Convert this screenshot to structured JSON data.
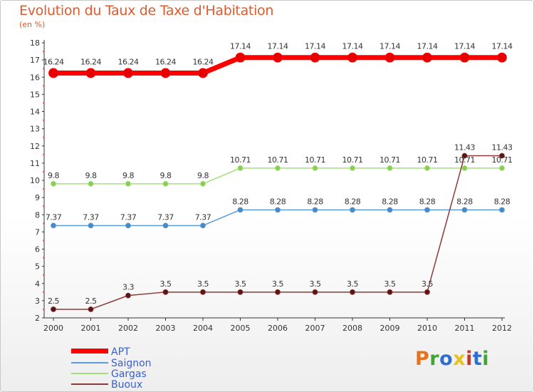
{
  "title": "Evolution du Taux de Taxe d'Habitation",
  "unit_label": "(en %)",
  "logo_text": "Proxiti",
  "logo_colors": [
    "#e8711c",
    "#3fa535",
    "#2f6fd1",
    "#e8c21c",
    "#c0392b",
    "#2f6fd1",
    "#3fa535"
  ],
  "chart_data": {
    "type": "line",
    "x": [
      2000,
      2001,
      2002,
      2003,
      2004,
      2005,
      2006,
      2007,
      2008,
      2009,
      2010,
      2011,
      2012
    ],
    "ylim": [
      2,
      18
    ],
    "yticks": [
      2,
      3,
      4,
      5,
      6,
      7,
      8,
      9,
      10,
      11,
      12,
      13,
      14,
      15,
      16,
      17,
      18
    ],
    "grid": false,
    "legend_position": "bottom-left",
    "series": [
      {
        "name": "APT",
        "color": "#ff0000",
        "values": [
          16.24,
          16.24,
          16.24,
          16.24,
          16.24,
          17.14,
          17.14,
          17.14,
          17.14,
          17.14,
          17.14,
          17.14,
          17.14
        ],
        "labels": [
          "16.24",
          "16.24",
          "16.24",
          "16.24",
          "16.24",
          "17.14",
          "17.14",
          "17.14",
          "17.14",
          "17.14",
          "17.14",
          "17.14",
          "17.14"
        ]
      },
      {
        "name": "Saignon",
        "color": "#5b9bd5",
        "values": [
          7.37,
          7.37,
          7.37,
          7.37,
          7.37,
          8.28,
          8.28,
          8.28,
          8.28,
          8.28,
          8.28,
          8.28,
          8.28
        ],
        "labels": [
          "7.37",
          "7.37",
          "7.37",
          "7.37",
          "7.37",
          "8.28",
          "8.28",
          "8.28",
          "8.28",
          "8.28",
          "8.28",
          "8.28",
          "8.28"
        ]
      },
      {
        "name": "Gargas",
        "color": "#9be067",
        "values": [
          9.8,
          9.8,
          9.8,
          9.8,
          9.8,
          10.71,
          10.71,
          10.71,
          10.71,
          10.71,
          10.71,
          10.71,
          10.71
        ],
        "labels": [
          "9.8",
          "9.8",
          "9.8",
          "9.8",
          "9.8",
          "10.71",
          "10.71",
          "10.71",
          "10.71",
          "10.71",
          "10.71",
          "10.71",
          "10.71"
        ]
      },
      {
        "name": "Buoux",
        "color": "#8b2e2e",
        "values": [
          2.5,
          2.5,
          3.3,
          3.5,
          3.5,
          3.5,
          3.5,
          3.5,
          3.5,
          3.5,
          3.5,
          11.43,
          11.43
        ],
        "labels": [
          "2.5",
          "2.5",
          "3.3",
          "3.5",
          "3.5",
          "3.5",
          "3.5",
          "3.5",
          "3.5",
          "3.5",
          "3.5",
          "11.43",
          "11.43"
        ]
      }
    ]
  }
}
